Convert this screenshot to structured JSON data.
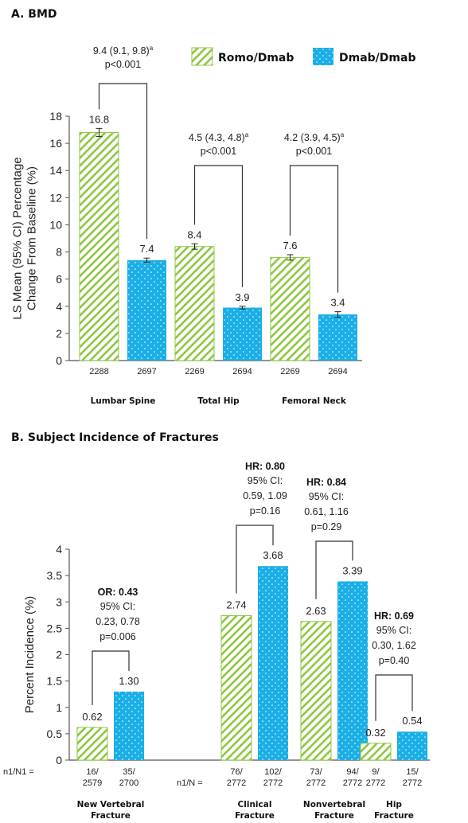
{
  "colors": {
    "romo": "#8dc63f",
    "dmab": "#1aafe6"
  },
  "legend": [
    {
      "name": "Romo/Dmab",
      "style": "hatch"
    },
    {
      "name": "Dmab/Dmab",
      "style": "dot"
    }
  ],
  "chart_data": [
    {
      "type": "bar",
      "title": "A. BMD",
      "ylabel": "LS Mean (95% CI) Percentage Change From Baseline (%)",
      "ylim": [
        0,
        18
      ],
      "yticks": [
        0,
        2,
        4,
        6,
        8,
        10,
        12,
        14,
        16,
        18
      ],
      "categories": [
        "Lumbar Spine",
        "Total Hip",
        "Femoral Neck"
      ],
      "series": [
        {
          "name": "Romo/Dmab",
          "values": [
            16.8,
            8.4,
            7.6
          ],
          "labels": [
            "16.8",
            "8.4",
            "7.6"
          ],
          "n": [
            "2288",
            "2269",
            "2269"
          ],
          "ci_halfwidth": [
            0.3,
            0.2,
            0.2
          ]
        },
        {
          "name": "Dmab/Dmab",
          "values": [
            7.4,
            3.9,
            3.4
          ],
          "labels": [
            "7.4",
            "3.9",
            "3.4"
          ],
          "n": [
            "2697",
            "2694",
            "2694"
          ],
          "ci_halfwidth": [
            0.15,
            0.1,
            0.2
          ]
        }
      ],
      "annotations": [
        {
          "group": 0,
          "lines": [
            "9.4 (9.1, 9.8)",
            "p<0.001"
          ],
          "sup": "a"
        },
        {
          "group": 1,
          "lines": [
            "4.5 (4.3, 4.8)",
            "p<0.001"
          ],
          "sup": "a"
        },
        {
          "group": 2,
          "lines": [
            "4.2 (3.9, 4.5)",
            "p<0.001"
          ],
          "sup": "a"
        }
      ]
    },
    {
      "type": "bar",
      "title": "B. Subject Incidence of Fractures",
      "ylabel": "Percent Incidence (%)",
      "ylim": [
        0,
        4
      ],
      "yticks": [
        0,
        0.5,
        1,
        1.5,
        2,
        2.5,
        3,
        3.5,
        4
      ],
      "ytick_labels": [
        "0",
        "0.5",
        "1",
        "1.5",
        "2",
        "2.5",
        "3",
        "3.5",
        "4"
      ],
      "categories": [
        [
          "New Vertebral",
          "Fracture"
        ],
        [
          "Clinical",
          "Fracture"
        ],
        [
          "Nonvertebral",
          "Fracture"
        ],
        [
          "Hip",
          "Fracture"
        ]
      ],
      "n_prefix": [
        "n1/N1 =",
        "n1/N ="
      ],
      "series": [
        {
          "name": "Romo/Dmab",
          "values": [
            0.62,
            2.74,
            2.63,
            0.32
          ],
          "labels": [
            "0.62",
            "2.74",
            "2.63",
            "0.32"
          ],
          "n": [
            [
              "16/",
              "2579"
            ],
            [
              "76/",
              "2772"
            ],
            [
              "73/",
              "2772"
            ],
            [
              "9/",
              "2772"
            ]
          ]
        },
        {
          "name": "Dmab/Dmab",
          "values": [
            1.3,
            3.68,
            3.39,
            0.54
          ],
          "labels": [
            "1.30",
            "3.68",
            "3.39",
            "0.54"
          ],
          "n": [
            [
              "35/",
              "2700"
            ],
            [
              "102/",
              "2772"
            ],
            [
              "94/",
              "2772"
            ],
            [
              "15/",
              "2772"
            ]
          ]
        }
      ],
      "annotations": [
        {
          "group": 0,
          "bold": "OR: 0.43",
          "lines": [
            "95% CI:",
            "0.23, 0.78",
            "p=0.006"
          ]
        },
        {
          "group": 1,
          "bold": "HR: 0.80",
          "lines": [
            "95% CI:",
            "0.59, 1.09",
            "p=0.16"
          ]
        },
        {
          "group": 2,
          "bold": "HR: 0.84",
          "lines": [
            "95% CI:",
            "0.61, 1.16",
            "p=0.29"
          ]
        },
        {
          "group": 3,
          "bold": "HR: 0.69",
          "lines": [
            "95% CI:",
            "0.30, 1.62",
            "p=0.40"
          ]
        }
      ]
    }
  ]
}
